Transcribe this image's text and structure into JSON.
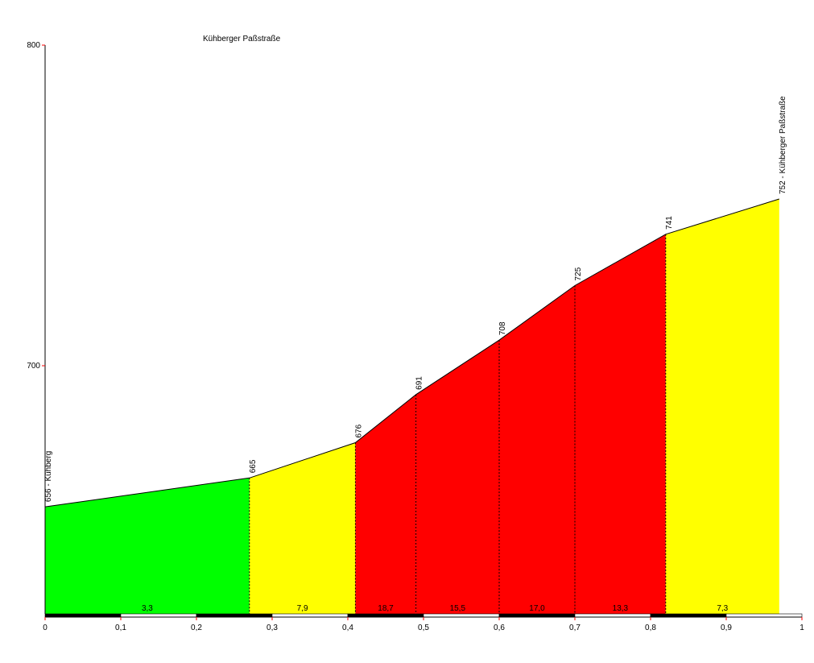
{
  "chart_data": {
    "type": "area",
    "title": "Kühberger Paßstraße",
    "xlabel": "",
    "ylabel": "",
    "xlim": [
      0,
      1
    ],
    "ylim": [
      625,
      800
    ],
    "x_ticks": [
      "0",
      "0,1",
      "0,2",
      "0,3",
      "0,4",
      "0,5",
      "0,6",
      "0,7",
      "0,8",
      "0,9",
      "1"
    ],
    "y_ticks": [
      "700",
      "800"
    ],
    "grid": false,
    "points": [
      {
        "x": 0.0,
        "y": 656,
        "label": "656 - Kühberg"
      },
      {
        "x": 0.27,
        "y": 665,
        "label": "665"
      },
      {
        "x": 0.41,
        "y": 676,
        "label": "676"
      },
      {
        "x": 0.49,
        "y": 691,
        "label": "691"
      },
      {
        "x": 0.6,
        "y": 708,
        "label": "708"
      },
      {
        "x": 0.7,
        "y": 725,
        "label": "725"
      },
      {
        "x": 0.82,
        "y": 741,
        "label": "741"
      },
      {
        "x": 0.97,
        "y": 752,
        "label": "752 - Kühberger Paßstraße"
      }
    ],
    "segments": [
      {
        "grade": "3,3",
        "color": "#00ff00"
      },
      {
        "grade": "7,9",
        "color": "#ffff00"
      },
      {
        "grade": "18,7",
        "color": "#ff0000"
      },
      {
        "grade": "15,5",
        "color": "#ff0000"
      },
      {
        "grade": "17,0",
        "color": "#ff0000"
      },
      {
        "grade": "13,3",
        "color": "#ff0000"
      },
      {
        "grade": "7,3",
        "color": "#ffff00"
      }
    ]
  },
  "colors": {
    "axis_tick": "#ff0000",
    "outline": "#000000"
  }
}
